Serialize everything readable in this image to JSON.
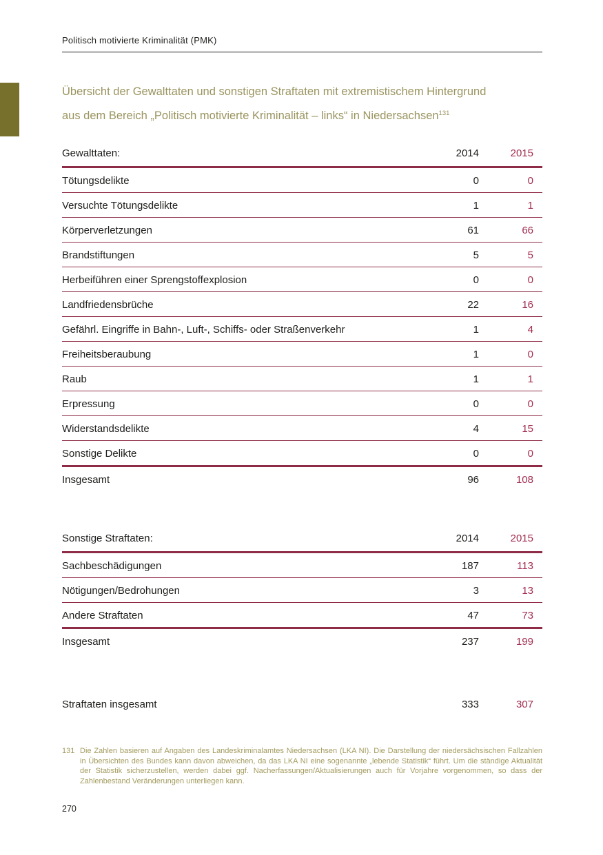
{
  "header": {
    "text": "Politisch motivierte Kriminalität (PMK)"
  },
  "title": {
    "line1": "Übersicht der Gewalttaten und sonstigen Straftaten mit extremistischem Hintergrund",
    "line2": "aus dem Bereich „Politisch motivierte Kriminalität – links“ in Niedersachsen",
    "footnote_ref": "131"
  },
  "colors": {
    "maroon-line": "#8e2c47",
    "maroon-text": "#a22d50",
    "olive-tab": "#77702d",
    "olive-title": "#9a945f",
    "olive-footnote": "#a39b5e",
    "ink": "#1d1d1b"
  },
  "tables": [
    {
      "title": "Gewalttaten:",
      "col_2014": "2014",
      "col_2015": "2015",
      "rows": [
        {
          "label": "Tötungsdelikte",
          "v2014": "0",
          "v2015": "0"
        },
        {
          "label": "Versuchte Tötungsdelikte",
          "v2014": "1",
          "v2015": "1"
        },
        {
          "label": "Körperverletzungen",
          "v2014": "61",
          "v2015": "66"
        },
        {
          "label": "Brandstiftungen",
          "v2014": "5",
          "v2015": "5"
        },
        {
          "label": "Herbeiführen einer Sprengstoffexplosion",
          "v2014": "0",
          "v2015": "0"
        },
        {
          "label": "Landfriedensbrüche",
          "v2014": "22",
          "v2015": "16"
        },
        {
          "label": "Gefährl. Eingriffe in Bahn-, Luft-, Schiffs- oder Straßenverkehr",
          "v2014": "1",
          "v2015": "4"
        },
        {
          "label": "Freiheitsberaubung",
          "v2014": "1",
          "v2015": "0"
        },
        {
          "label": "Raub",
          "v2014": "1",
          "v2015": "1"
        },
        {
          "label": "Erpressung",
          "v2014": "0",
          "v2015": "0"
        },
        {
          "label": "Widerstandsdelikte",
          "v2014": "4",
          "v2015": "15"
        },
        {
          "label": "Sonstige Delikte",
          "v2014": "0",
          "v2015": "0"
        }
      ],
      "total": {
        "label": "Insgesamt",
        "v2014": "96",
        "v2015": "108"
      }
    },
    {
      "title": "Sonstige Straftaten:",
      "col_2014": "2014",
      "col_2015": "2015",
      "rows": [
        {
          "label": "Sachbeschädigungen",
          "v2014": "187",
          "v2015": "113"
        },
        {
          "label": "Nötigungen/Bedrohungen",
          "v2014": "3",
          "v2015": "13"
        },
        {
          "label": "Andere Straftaten",
          "v2014": "47",
          "v2015": "73"
        }
      ],
      "total": {
        "label": "Insgesamt",
        "v2014": "237",
        "v2015": "199"
      }
    }
  ],
  "grand_total": {
    "label": "Straftaten insgesamt",
    "v2014": "333",
    "v2015": "307"
  },
  "footnote": {
    "number": "131",
    "text": "Die Zahlen basieren auf Angaben des Landeskriminalamtes Niedersachsen (LKA NI). Die Darstellung der niedersächsischen Fallzahlen in Übersichten des Bundes kann davon abweichen, da das LKA NI eine sogenannte „lebende Statistik“ führt. Um die ständige Aktualität der Statistik sicherzustellen, werden dabei ggf. Nacherfassungen/Aktualisierungen auch für Vorjahre vorgenommen, so dass der Zahlenbestand Veränderungen unterliegen kann."
  },
  "page_number": "270"
}
